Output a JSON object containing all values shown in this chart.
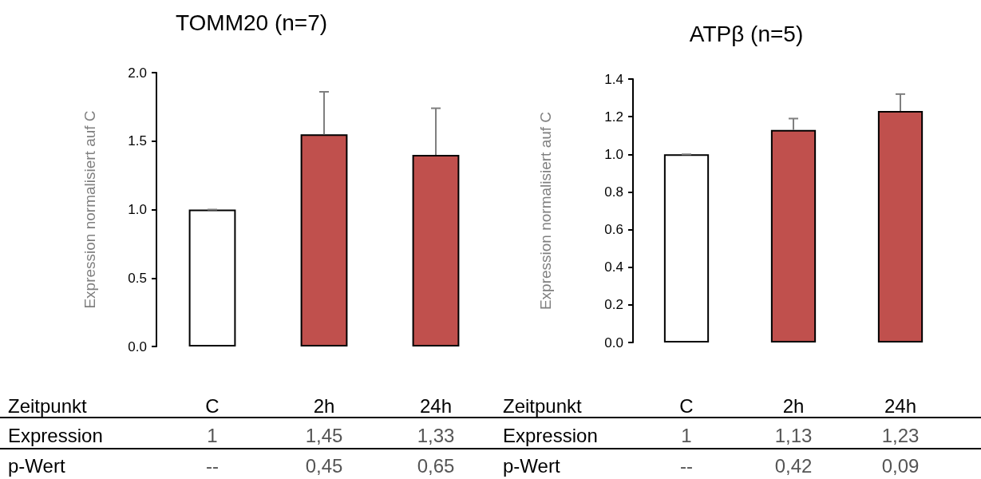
{
  "chart_data": [
    {
      "type": "bar",
      "title": "TOMM20 (n=7)",
      "ylabel": "Expression normalisiert auf C",
      "xlabel": "Zeitpunkt",
      "categories": [
        "C",
        "2h",
        "24h"
      ],
      "values": [
        1.0,
        1.55,
        1.4
      ],
      "colors": [
        "#ffffff",
        "#c0504d",
        "#c0504d"
      ],
      "errors": [
        0,
        0.31,
        0.34
      ],
      "ylim": [
        0,
        2
      ],
      "yticks": [
        {
          "value": 0,
          "label": "0.0"
        },
        {
          "value": 0.5,
          "label": "0.5"
        },
        {
          "value": 1,
          "label": "1.0"
        },
        {
          "value": 1.5,
          "label": "1.5"
        },
        {
          "value": 2,
          "label": "2.0"
        }
      ],
      "annotations": [
        "Expression",
        "1",
        "1,45",
        "1,33",
        "p-Wert",
        "--",
        "0,45",
        "0,65"
      ]
    },
    {
      "type": "bar",
      "title": "ATPβ (n=5)",
      "ylabel": "Expression normalisiert auf C",
      "xlabel": "Zeitpunkt",
      "categories": [
        "C",
        "2h",
        "24h"
      ],
      "values": [
        1.0,
        1.13,
        1.23
      ],
      "colors": [
        "#ffffff",
        "#c0504d",
        "#c0504d"
      ],
      "errors": [
        0,
        0.06,
        0.09
      ],
      "ylim": [
        0,
        1.4
      ],
      "yticks": [
        {
          "value": 0,
          "label": "0.0"
        },
        {
          "value": 0.2,
          "label": "0.2"
        },
        {
          "value": 0.4,
          "label": "0.4"
        },
        {
          "value": 0.6,
          "label": "0.6"
        },
        {
          "value": 0.8,
          "label": "0.8"
        },
        {
          "value": 1,
          "label": "1.0"
        },
        {
          "value": 1.2,
          "label": "1.2"
        },
        {
          "value": 1.4,
          "label": "1.4"
        }
      ],
      "annotations": [
        "Expression",
        "1",
        "1,13",
        "1,23",
        "p-Wert",
        "--",
        "0,42",
        "0,09"
      ]
    }
  ]
}
